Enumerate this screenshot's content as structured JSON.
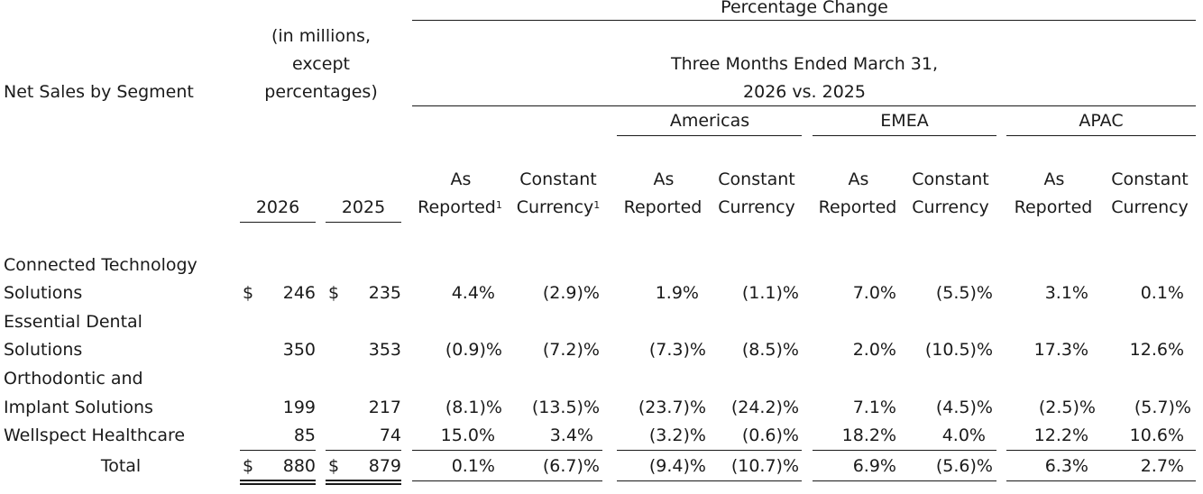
{
  "header": {
    "pct_change": "Percentage Change",
    "row_label_header": "Net Sales by Segment",
    "units_line1": "(in millions,",
    "units_line2": "except",
    "units_line3": "percentages)",
    "period_line1": "Three Months Ended March 31,",
    "period_line2": "2026 vs. 2025",
    "regions": [
      "Americas",
      "EMEA",
      "APAC"
    ],
    "year_2026": "2026",
    "year_2025": "2025",
    "as_reported_l1": "As",
    "as_reported_l2": "Reported",
    "constant_l1": "Constant",
    "constant_l2": "Currency",
    "footnote_mark": "1"
  },
  "currency_symbol": "$",
  "rows": [
    {
      "label_line1": "Connected Technology",
      "label_line2": "Solutions",
      "y2026": "246",
      "y2025": "235",
      "values": [
        "4.4%",
        "(2.9)%",
        "1.9%",
        "(1.1)%",
        "7.0%",
        "(5.5)%",
        "3.1%",
        "0.1%"
      ]
    },
    {
      "label_line1": "Essential Dental",
      "label_line2": "Solutions",
      "y2026": "350",
      "y2025": "353",
      "values": [
        "(0.9)%",
        "(7.2)%",
        "(7.3)%",
        "(8.5)%",
        "2.0%",
        "(10.5)%",
        "17.3%",
        "12.6%"
      ]
    },
    {
      "label_line1": "Orthodontic and",
      "label_line2": "Implant Solutions",
      "y2026": "199",
      "y2025": "217",
      "values": [
        "(8.1)%",
        "(13.5)%",
        "(23.7)%",
        "(24.2)%",
        "7.1%",
        "(4.5)%",
        "(2.5)%",
        "(5.7)%"
      ]
    },
    {
      "label_line1": "Wellspect Healthcare",
      "y2026": "85",
      "y2025": "74",
      "values": [
        "15.0%",
        "3.4%",
        "(3.2)%",
        "(0.6)%",
        "18.2%",
        "4.0%",
        "12.2%",
        "10.6%"
      ]
    }
  ],
  "total": {
    "label": "Total",
    "y2026": "880",
    "y2025": "879",
    "values": [
      "0.1%",
      "(6.7)%",
      "(9.4)%",
      "(10.7)%",
      "6.9%",
      "(5.6)%",
      "6.3%",
      "2.7%"
    ]
  }
}
